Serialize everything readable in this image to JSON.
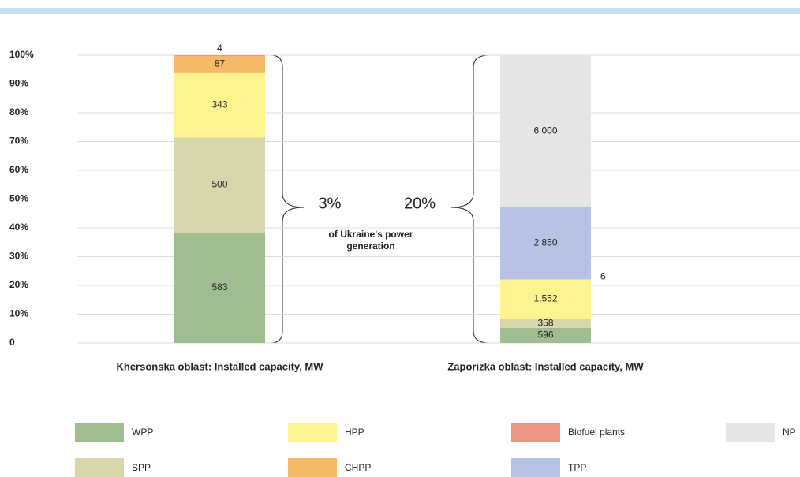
{
  "chart_data": {
    "type": "stacked_percent_bar",
    "categories": [
      "Khersonska oblast: Installed capacity, MW",
      "Zaporizka oblast: Installed capacity, MW"
    ],
    "series": [
      {
        "name": "WPP",
        "color": "#a0bd8f",
        "values": [
          583,
          596
        ]
      },
      {
        "name": "SPP",
        "color": "#d9d6ab",
        "values": [
          500,
          358
        ]
      },
      {
        "name": "HPP",
        "color": "#fdf38f",
        "values": [
          343,
          1552
        ],
        "value_labels": [
          "343",
          "1,552"
        ]
      },
      {
        "name": "CHPP",
        "color": "#f6b96a",
        "values": [
          87,
          null
        ]
      },
      {
        "name": "Biofuel plants",
        "color": "#ec9580",
        "values": [
          4,
          6
        ]
      },
      {
        "name": "TPP",
        "color": "#b6c3e4",
        "values": [
          null,
          2850
        ],
        "value_labels": [
          null,
          "2 850"
        ]
      },
      {
        "name": "NP",
        "color": "#e6e6e6",
        "values": [
          null,
          6000
        ],
        "value_labels": [
          null,
          "6 000"
        ]
      }
    ],
    "ylim": [
      0,
      100
    ],
    "yticks": [
      0,
      {
        "value": 10,
        "label": "10%"
      },
      {
        "value": 20,
        "label": "20%"
      },
      {
        "value": 30,
        "label": "30%"
      },
      {
        "value": 40,
        "label": "40%"
      },
      {
        "value": 50,
        "label": "50%"
      },
      {
        "value": 60,
        "label": "60%"
      },
      {
        "value": 70,
        "label": "70%"
      },
      {
        "value": 80,
        "label": "80%"
      },
      {
        "value": 90,
        "label": "90%"
      },
      {
        "value": 100,
        "label": "100%"
      }
    ],
    "grid": true,
    "annotations": [
      "3%",
      "20%",
      "of Ukraine's power generation"
    ]
  }
}
